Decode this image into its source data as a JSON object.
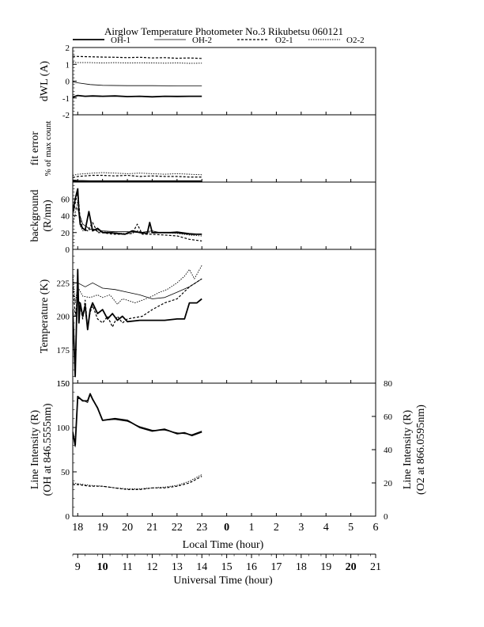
{
  "chart_data": {
    "type": "line",
    "title": "Airglow Temperature Photometer No.3  Rikubetsu   060121",
    "legend": [
      {
        "name": "OH-1",
        "style": "solid-thick"
      },
      {
        "name": "OH-2",
        "style": "solid-thin"
      },
      {
        "name": "O2-1",
        "style": "dashed"
      },
      {
        "name": "O2-2",
        "style": "dotted"
      }
    ],
    "x_local": {
      "label": "Local Time (hour)",
      "range": [
        17.8,
        30.0
      ],
      "ticks": [
        "18",
        "19",
        "20",
        "21",
        "22",
        "23",
        "0",
        "1",
        "2",
        "3",
        "4",
        "5",
        "6"
      ]
    },
    "x_universal": {
      "label": "Universal Time (hour)",
      "ticks": [
        "9",
        "10",
        "11",
        "12",
        "13",
        "14",
        "15",
        "16",
        "17",
        "18",
        "19",
        "20",
        "21"
      ]
    },
    "panels": [
      {
        "id": "dwl",
        "ylabel": "dWL (A)",
        "ylim": [
          -2,
          2
        ],
        "ticks": [
          "2",
          "1",
          "0",
          "-1",
          "-2"
        ],
        "series": [
          {
            "name": "OH-1",
            "x": [
              17.8,
              18.0,
              18.3,
              18.6,
              19.0,
              19.5,
              20.0,
              20.5,
              21.0,
              21.5,
              22.0,
              22.5,
              23.0
            ],
            "y": [
              -0.95,
              -0.85,
              -0.9,
              -0.88,
              -0.9,
              -0.88,
              -0.92,
              -0.9,
              -0.93,
              -0.9,
              -0.91,
              -0.9,
              -0.9
            ]
          },
          {
            "name": "OH-2",
            "x": [
              17.8,
              18.0,
              18.5,
              19.0,
              20.0,
              21.0,
              22.0,
              23.0
            ],
            "y": [
              -0.05,
              -0.1,
              -0.2,
              -0.25,
              -0.27,
              -0.27,
              -0.28,
              -0.28
            ]
          },
          {
            "name": "O2-1",
            "x": [
              17.8,
              18.0,
              18.5,
              19.0,
              19.5,
              20.0,
              20.5,
              21.0,
              21.5,
              22.0,
              22.5,
              23.0
            ],
            "y": [
              1.48,
              1.47,
              1.45,
              1.43,
              1.42,
              1.4,
              1.42,
              1.38,
              1.4,
              1.36,
              1.38,
              1.35
            ]
          },
          {
            "name": "O2-2",
            "x": [
              17.8,
              18.0,
              18.5,
              19.0,
              19.5,
              20.0,
              20.5,
              21.0,
              21.5,
              22.0,
              22.5,
              23.0
            ],
            "y": [
              1.12,
              1.1,
              1.1,
              1.08,
              1.1,
              1.08,
              1.09,
              1.08,
              1.07,
              1.08,
              1.06,
              1.07
            ]
          }
        ]
      },
      {
        "id": "fit",
        "ylabel": "fit error",
        "ylabel2": "% of max count",
        "ylim": [
          0,
          6
        ],
        "ticks": [],
        "series": [
          {
            "name": "OH-1",
            "x": [
              17.8,
              18.0,
              18.5,
              19.0,
              20.0,
              21.0,
              22.0,
              23.0
            ],
            "y": [
              0.1,
              0.08,
              0.05,
              0.05,
              0.05,
              0.05,
              0.05,
              0.05
            ]
          },
          {
            "name": "OH-2",
            "x": [
              17.8,
              18.0,
              18.5,
              19.0,
              20.0,
              21.0,
              22.0,
              23.0
            ],
            "y": [
              0.2,
              0.15,
              0.12,
              0.12,
              0.12,
              0.12,
              0.12,
              0.12
            ]
          },
          {
            "name": "O2-1",
            "x": [
              17.8,
              18.0,
              18.3,
              18.6,
              19.0,
              19.5,
              20.0,
              20.5,
              21.0,
              21.5,
              22.0,
              22.5,
              23.0
            ],
            "y": [
              0.4,
              0.5,
              0.55,
              0.6,
              0.6,
              0.55,
              0.6,
              0.5,
              0.55,
              0.5,
              0.5,
              0.45,
              0.45
            ]
          },
          {
            "name": "O2-2",
            "x": [
              17.8,
              18.0,
              18.3,
              18.6,
              19.0,
              19.5,
              20.0,
              20.5,
              21.0,
              21.5,
              22.0,
              22.5,
              23.0
            ],
            "y": [
              0.6,
              0.7,
              0.75,
              0.8,
              0.85,
              0.8,
              0.75,
              0.8,
              0.75,
              0.7,
              0.75,
              0.7,
              0.65
            ]
          }
        ]
      },
      {
        "id": "bg",
        "ylabel": "background",
        "ylabel2": "(R/nm)",
        "ylim": [
          0,
          80
        ],
        "ticks": [
          "60",
          "40",
          "20",
          "0"
        ],
        "series": [
          {
            "name": "OH-1",
            "x": [
              17.8,
              17.9,
              18.0,
              18.05,
              18.1,
              18.2,
              18.3,
              18.45,
              18.6,
              18.8,
              19.0,
              19.3,
              19.6,
              19.9,
              20.2,
              20.5,
              20.8,
              20.9,
              21.0,
              21.5,
              22.0,
              22.3,
              22.6,
              23.0
            ],
            "y": [
              45,
              60,
              72,
              45,
              30,
              25,
              23,
              45,
              22,
              25,
              20,
              20,
              19,
              18,
              22,
              20,
              19,
              32,
              20,
              20,
              20,
              19,
              18,
              18
            ]
          },
          {
            "name": "OH-2",
            "x": [
              17.8,
              18.0,
              18.2,
              18.5,
              19.0,
              19.5,
              20.0,
              20.5,
              21.0,
              21.3,
              21.6,
              22.0,
              22.5,
              23.0
            ],
            "y": [
              50,
              48,
              30,
              24,
              22,
              21,
              21,
              20,
              22,
              20,
              20,
              21,
              19,
              18
            ]
          },
          {
            "name": "O2-1",
            "x": [
              17.8,
              17.9,
              18.0,
              18.1,
              18.2,
              18.4,
              18.6,
              18.8,
              19.0,
              19.4,
              19.8,
              20.2,
              20.4,
              20.6,
              21.0,
              21.5,
              22.0,
              22.5,
              23.0
            ],
            "y": [
              40,
              55,
              70,
              35,
              25,
              22,
              32,
              20,
              20,
              18,
              18,
              19,
              30,
              18,
              18,
              17,
              16,
              12,
              10
            ]
          },
          {
            "name": "O2-2",
            "x": [
              17.8,
              17.9,
              18.0,
              18.1,
              18.2,
              18.4,
              18.6,
              18.8,
              19.0,
              19.4,
              19.8,
              20.2,
              20.4,
              20.6,
              21.0,
              21.5,
              22.0,
              22.5,
              23.0
            ],
            "y": [
              30,
              42,
              58,
              28,
              22,
              22,
              25,
              21,
              21,
              20,
              19,
              19,
              22,
              20,
              20,
              20,
              19,
              17,
              16
            ]
          }
        ]
      },
      {
        "id": "temp",
        "ylabel": "Temperature (K)",
        "ylim": [
          150,
          250
        ],
        "ticks": [
          "225",
          "200",
          "175",
          "150"
        ],
        "series": [
          {
            "name": "OH-1",
            "x": [
              17.8,
              17.9,
              18.0,
              18.05,
              18.1,
              18.2,
              18.3,
              18.4,
              18.5,
              18.6,
              18.8,
              19.0,
              19.2,
              19.4,
              19.6,
              19.8,
              20.0,
              20.5,
              21.0,
              21.5,
              22.0,
              22.3,
              22.5,
              22.8,
              23.0
            ],
            "y": [
              205,
              155,
              235,
              195,
              210,
              200,
              208,
              190,
              205,
              210,
              202,
              205,
              198,
              202,
              197,
              200,
              196,
              197,
              197,
              197,
              198,
              198,
              210,
              210,
              213
            ]
          },
          {
            "name": "OH-2",
            "x": [
              17.8,
              18.0,
              18.3,
              18.6,
              19.0,
              19.5,
              20.0,
              20.5,
              21.0,
              21.5,
              22.0,
              22.5,
              23.0
            ],
            "y": [
              225,
              225,
              222,
              225,
              221,
              220,
              218,
              216,
              213,
              214,
              218,
              222,
              228
            ]
          },
          {
            "name": "O2-1",
            "x": [
              17.8,
              17.9,
              18.0,
              18.1,
              18.2,
              18.3,
              18.4,
              18.5,
              18.6,
              18.8,
              19.0,
              19.2,
              19.4,
              19.6,
              19.8,
              20.0,
              20.3,
              20.6,
              21.0,
              21.5,
              22.0,
              22.5,
              23.0
            ],
            "y": [
              225,
              200,
              215,
              208,
              198,
              212,
              192,
              203,
              208,
              198,
              195,
              200,
              192,
              200,
              195,
              198,
              199,
              200,
              205,
              210,
              213,
              222,
              228
            ]
          },
          {
            "name": "O2-2",
            "x": [
              17.8,
              17.9,
              18.0,
              18.2,
              18.5,
              18.8,
              19.0,
              19.3,
              19.6,
              19.8,
              20.0,
              20.3,
              20.6,
              21.0,
              21.3,
              21.6,
              22.0,
              22.3,
              22.5,
              22.7,
              23.0
            ],
            "y": [
              233,
              210,
              222,
              215,
              214,
              216,
              214,
              216,
              209,
              213,
              212,
              210,
              212,
              215,
              218,
              220,
              225,
              230,
              235,
              228,
              238
            ]
          }
        ]
      },
      {
        "id": "int",
        "ylabel": "Line Intensity (R)",
        "ylabel2": "(OH at 846.5555nm)",
        "ylim": [
          0,
          150
        ],
        "ticks": [
          "150",
          "100",
          "50",
          "0"
        ],
        "right_ylabel": "Line Intensity (R)",
        "right_ylabel2": "(O2 at 866.0595nm)",
        "right_ylim": [
          0,
          80
        ],
        "right_ticks": [
          "80",
          "60",
          "40",
          "20",
          "0"
        ],
        "series": [
          {
            "name": "OH-1",
            "axis": "left",
            "x": [
              17.8,
              17.9,
              18.0,
              18.2,
              18.4,
              18.5,
              18.6,
              18.8,
              19.0,
              19.5,
              20.0,
              20.5,
              21.0,
              21.5,
              22.0,
              22.3,
              22.6,
              23.0
            ],
            "y": [
              95,
              80,
              135,
              130,
              130,
              138,
              132,
              122,
              108,
              110,
              108,
              100,
              96,
              98,
              93,
              94,
              91,
              95
            ]
          },
          {
            "name": "OH-2",
            "axis": "left",
            "x": [
              17.8,
              17.9,
              18.0,
              18.2,
              18.4,
              18.5,
              18.6,
              18.8,
              19.0,
              19.5,
              20.0,
              20.5,
              21.0,
              21.5,
              22.0,
              22.3,
              22.6,
              23.0
            ],
            "y": [
              92,
              78,
              133,
              131,
              128,
              137,
              131,
              123,
              108,
              109,
              107,
              101,
              97,
              97,
              94,
              93,
              92,
              96
            ]
          },
          {
            "name": "O2-1",
            "axis": "right",
            "x": [
              17.8,
              18.0,
              18.5,
              19.0,
              19.5,
              20.0,
              20.5,
              21.0,
              21.5,
              22.0,
              22.5,
              23.0
            ],
            "y": [
              19,
              19,
              18,
              18,
              17,
              16,
              16,
              17,
              17,
              18,
              20,
              24
            ]
          },
          {
            "name": "O2-2",
            "axis": "right",
            "x": [
              17.8,
              18.0,
              18.5,
              19.0,
              19.5,
              20.0,
              20.5,
              21.0,
              21.5,
              22.0,
              22.5,
              23.0
            ],
            "y": [
              20,
              19.5,
              18.5,
              18,
              17,
              16.5,
              16.5,
              17,
              17.5,
              18.5,
              21,
              25
            ]
          }
        ]
      }
    ]
  }
}
